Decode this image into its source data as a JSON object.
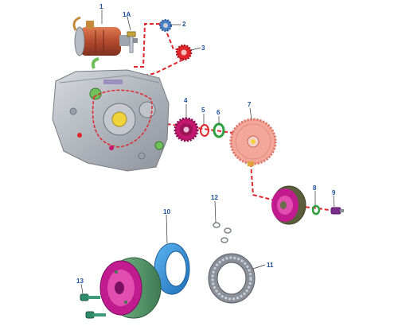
{
  "diagram": {
    "kind": "exploded parts view",
    "subject": "engine starter and clutch assembly",
    "colors": {
      "callout_text": "#1b4f9c",
      "leader_line": "#e0262b",
      "engine_casing": "#b9bec6",
      "starter_motor_body": "#c0563a",
      "idler_gear_2": "#4a82c8",
      "idler_gear_3": "#e0262b",
      "gear_4": "#c2186e",
      "o_ring_6": "#2e9e3e",
      "large_gear_7": "#f2a79a",
      "rotor_housing": "#5b5e3a",
      "seal_ring_10": "#2f8fd6",
      "bearing_11": "#8a8f98",
      "outer_hub_magenta": "#c21a8f",
      "outer_hub_green": "#5f9e72",
      "bolt_9": "#7b2d8e"
    },
    "parts": [
      {
        "id": "1",
        "icon": "starter-motor"
      },
      {
        "id": "1A",
        "icon": "bolt"
      },
      {
        "id": "2",
        "icon": "small-gear"
      },
      {
        "id": "3",
        "icon": "small-gear"
      },
      {
        "id": "4",
        "icon": "gear"
      },
      {
        "id": "5",
        "icon": "washer"
      },
      {
        "id": "6",
        "icon": "o-ring"
      },
      {
        "id": "7",
        "icon": "large-gear"
      },
      {
        "id": "8",
        "icon": "o-ring"
      },
      {
        "id": "9",
        "icon": "bolt"
      },
      {
        "id": "10",
        "icon": "seal-ring"
      },
      {
        "id": "11",
        "icon": "roller-bearing"
      },
      {
        "id": "12",
        "icon": "circlip"
      },
      {
        "id": "13",
        "icon": "bolt"
      }
    ]
  }
}
